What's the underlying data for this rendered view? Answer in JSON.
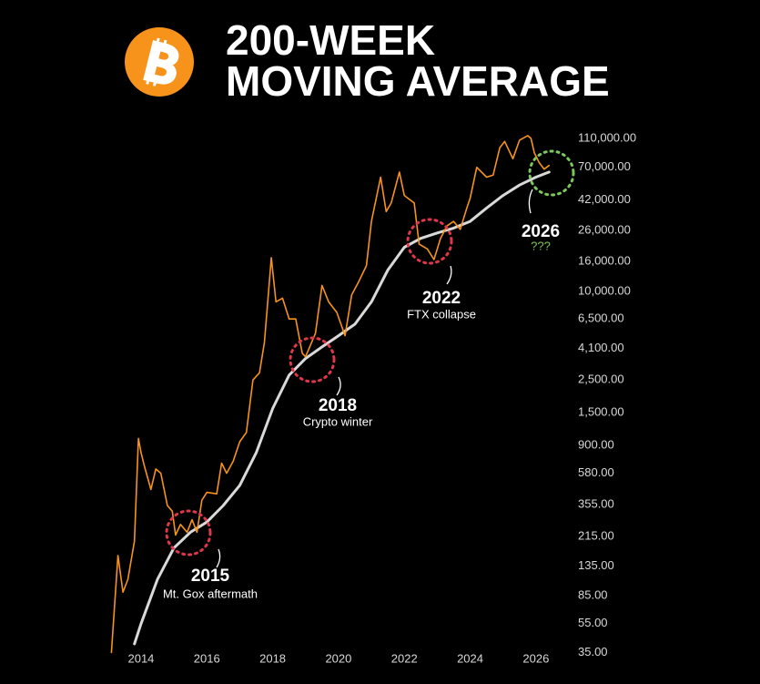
{
  "chart_data": {
    "type": "line",
    "title": [
      "200-WEEK",
      "MOVING AVERAGE"
    ],
    "log_scale": true,
    "grid": false,
    "xlim": [
      2013,
      2027
    ],
    "xticks": [
      2014,
      2016,
      2018,
      2020,
      2022,
      2024,
      2026
    ],
    "ylim": [
      33,
      130000
    ],
    "yticks": [
      {
        "value": 110000,
        "label": "110,000.00"
      },
      {
        "value": 70000,
        "label": "70,000.00"
      },
      {
        "value": 42000,
        "label": "42,000.00"
      },
      {
        "value": 26000,
        "label": "26,000.00"
      },
      {
        "value": 16000,
        "label": "16,000.00"
      },
      {
        "value": 10000,
        "label": "10,000.00"
      },
      {
        "value": 6500,
        "label": "6,500.00"
      },
      {
        "value": 4100,
        "label": "4,100.00"
      },
      {
        "value": 2500,
        "label": "2,500.00"
      },
      {
        "value": 1500,
        "label": "1,500.00"
      },
      {
        "value": 900,
        "label": "900.00"
      },
      {
        "value": 580,
        "label": "580.00"
      },
      {
        "value": 355,
        "label": "355.00"
      },
      {
        "value": 215,
        "label": "215.00"
      },
      {
        "value": 135,
        "label": "135.00"
      },
      {
        "value": 85,
        "label": "85.00"
      },
      {
        "value": 55,
        "label": "55.00"
      },
      {
        "value": 35,
        "label": "35.00"
      }
    ],
    "series": [
      {
        "color": "#f7931a",
        "x": [
          2013.1,
          2013.3,
          2013.45,
          2013.6,
          2013.8,
          2013.92,
          2014.0,
          2014.1,
          2014.3,
          2014.45,
          2014.6,
          2014.8,
          2014.95,
          2015.05,
          2015.2,
          2015.4,
          2015.55,
          2015.7,
          2015.85,
          2016.0,
          2016.3,
          2016.45,
          2016.6,
          2016.8,
          2017.0,
          2017.2,
          2017.4,
          2017.6,
          2017.75,
          2017.96,
          2018.1,
          2018.3,
          2018.5,
          2018.7,
          2018.9,
          2019.0,
          2019.3,
          2019.5,
          2019.7,
          2019.95,
          2020.2,
          2020.4,
          2020.6,
          2020.85,
          2021.0,
          2021.28,
          2021.45,
          2021.6,
          2021.85,
          2022.0,
          2022.3,
          2022.45,
          2022.7,
          2022.9,
          2023.1,
          2023.3,
          2023.5,
          2023.7,
          2023.9,
          2024.0,
          2024.2,
          2024.5,
          2024.7,
          2024.9,
          2025.05,
          2025.3,
          2025.5,
          2025.75,
          2025.85,
          2025.95,
          2026.1,
          2026.25,
          2026.4
        ],
        "values": [
          35,
          160,
          90,
          110,
          200,
          1000,
          800,
          650,
          450,
          620,
          580,
          350,
          320,
          220,
          260,
          230,
          280,
          230,
          380,
          430,
          420,
          680,
          580,
          700,
          950,
          1100,
          2500,
          2800,
          4500,
          17000,
          8500,
          9000,
          6500,
          6500,
          3800,
          3600,
          5200,
          11000,
          8500,
          7200,
          5000,
          9500,
          11500,
          15000,
          30000,
          60000,
          35000,
          40000,
          65000,
          45000,
          40000,
          21000,
          19500,
          16500,
          23000,
          28000,
          30000,
          26500,
          37000,
          43000,
          70000,
          60000,
          62000,
          95000,
          105000,
          80000,
          107000,
          115000,
          110000,
          88000,
          75000,
          68000,
          72000
        ]
      },
      {
        "color": "#d9d9d9",
        "x": [
          2013.8,
          2014.0,
          2014.5,
          2015.0,
          2015.5,
          2016.0,
          2016.5,
          2017.0,
          2017.5,
          2018.0,
          2018.5,
          2019.0,
          2019.5,
          2020.0,
          2020.5,
          2021.0,
          2021.5,
          2022.0,
          2022.5,
          2023.0,
          2023.5,
          2024.0,
          2024.5,
          2025.0,
          2025.5,
          2026.0,
          2026.4
        ],
        "values": [
          40,
          55,
          110,
          180,
          230,
          270,
          350,
          480,
          800,
          1600,
          2700,
          3500,
          4200,
          5000,
          6000,
          8500,
          14000,
          20000,
          23000,
          25000,
          27000,
          30000,
          37000,
          45000,
          53000,
          60000,
          65000
        ]
      }
    ],
    "annotations": [
      {
        "title": "2015",
        "text": "Mt. Gox aftermath"
      },
      {
        "title": "2018",
        "text": "Crypto winter"
      },
      {
        "title": "2022",
        "text": "FTX collapse"
      },
      {
        "title": "2026",
        "text": "???"
      }
    ]
  }
}
